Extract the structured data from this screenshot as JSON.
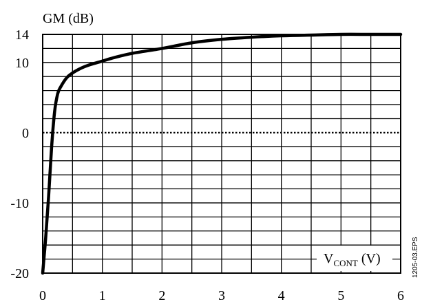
{
  "chart_data": {
    "type": "line",
    "ylabel": "GM (dB)",
    "xlabel_main": "V",
    "xlabel_sub": "CONT",
    "xlabel_unit": "(V)",
    "xlim": [
      0,
      6
    ],
    "ylim": [
      -20,
      14
    ],
    "x_ticks": [
      "0",
      "1",
      "2",
      "3",
      "4",
      "5",
      "6"
    ],
    "y_ticks": [
      {
        "value": 14,
        "label": "14"
      },
      {
        "value": 10,
        "label": "10"
      },
      {
        "value": 0,
        "label": "0"
      },
      {
        "value": -10,
        "label": "-10"
      },
      {
        "value": -20,
        "label": "-20"
      }
    ],
    "reference_line": {
      "y": 0,
      "style": "dotted"
    },
    "grid": true,
    "series": [
      {
        "x": [
          0,
          0.05,
          0.1,
          0.15,
          0.2,
          0.25,
          0.3,
          0.4,
          0.5,
          0.6,
          0.7,
          0.8,
          1.0,
          1.2,
          1.5,
          2.0,
          2.5,
          3.0,
          3.5,
          4.0,
          4.5,
          5.0,
          5.5,
          6.0
        ],
        "y": [
          -20,
          -15,
          -9,
          -2,
          3,
          5.5,
          6.5,
          7.8,
          8.5,
          9.0,
          9.4,
          9.7,
          10.2,
          10.7,
          11.3,
          12.0,
          12.8,
          13.3,
          13.6,
          13.8,
          13.9,
          14.0,
          14.0,
          14.0
        ]
      }
    ],
    "side_label": "1205-03.EPS"
  }
}
